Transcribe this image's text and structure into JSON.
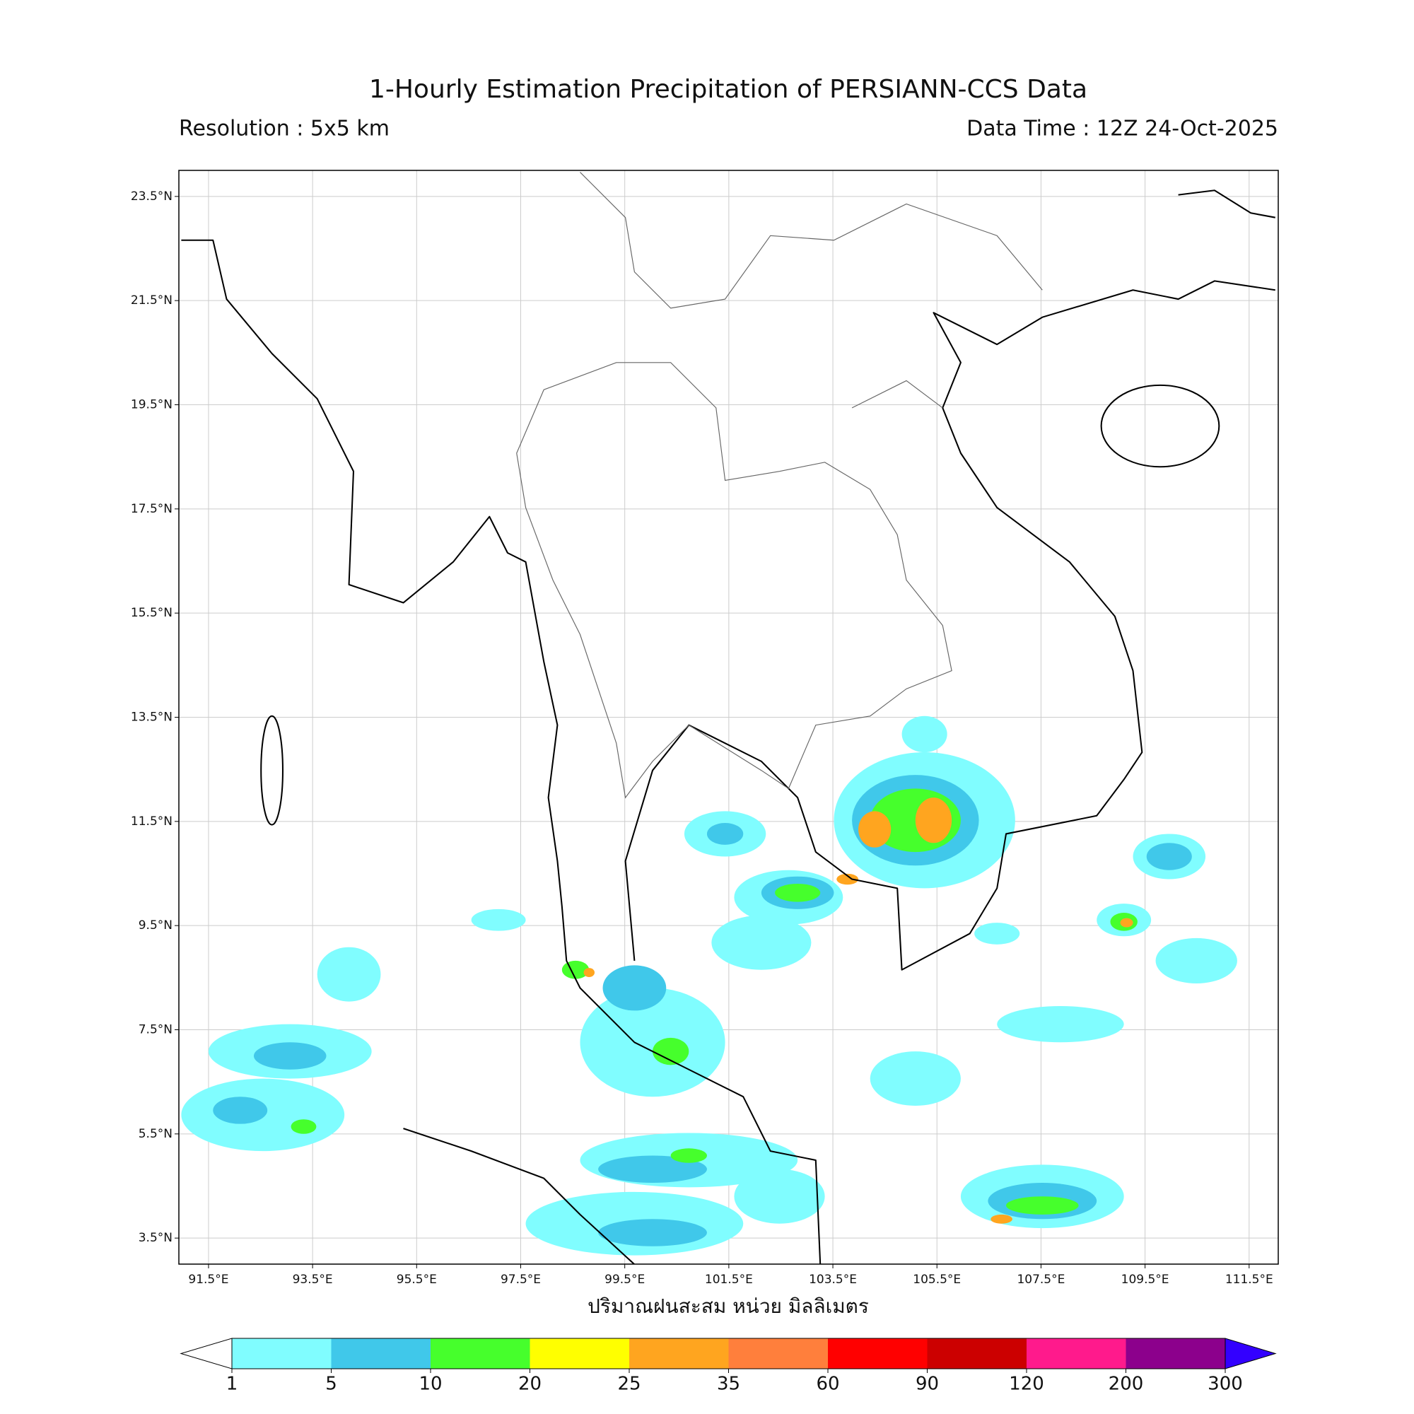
{
  "map": {
    "title": "1-Hourly Estimation Precipitation of PERSIANN-CCS Data",
    "resolution": "Resolution : 5x5 km",
    "data_time": "Data Time : 12Z 24-Oct-2025",
    "xlabel": "ปริมาณฝนสะสม หน่วย มิลลิเมตร",
    "xlim": [
      90.93,
      112.06
    ],
    "ylim": [
      3.0,
      24.0
    ],
    "xticks": [
      {
        "value": 91.5,
        "label": "91.5°E"
      },
      {
        "value": 93.5,
        "label": "93.5°E"
      },
      {
        "value": 95.5,
        "label": "95.5°E"
      },
      {
        "value": 97.5,
        "label": "97.5°E"
      },
      {
        "value": 99.5,
        "label": "99.5°E"
      },
      {
        "value": 101.5,
        "label": "101.5°E"
      },
      {
        "value": 103.5,
        "label": "103.5°E"
      },
      {
        "value": 105.5,
        "label": "105.5°E"
      },
      {
        "value": 107.5,
        "label": "107.5°E"
      },
      {
        "value": 109.5,
        "label": "109.5°E"
      },
      {
        "value": 111.5,
        "label": "111.5°E"
      }
    ],
    "yticks": [
      {
        "value": 3.5,
        "label": "3.5°N"
      },
      {
        "value": 5.5,
        "label": "5.5°N"
      },
      {
        "value": 7.5,
        "label": "7.5°N"
      },
      {
        "value": 9.5,
        "label": "9.5°N"
      },
      {
        "value": 11.5,
        "label": "11.5°N"
      },
      {
        "value": 13.5,
        "label": "13.5°N"
      },
      {
        "value": 15.5,
        "label": "15.5°N"
      },
      {
        "value": 17.5,
        "label": "17.5°N"
      },
      {
        "value": 19.5,
        "label": "19.5°N"
      },
      {
        "value": 21.5,
        "label": "21.5°N"
      },
      {
        "value": 23.5,
        "label": "23.5°N"
      }
    ],
    "grid": true,
    "colorbar": {
      "levels": [
        1,
        5,
        10,
        20,
        25,
        35,
        60,
        90,
        120,
        200,
        300
      ],
      "colors": [
        "#80fdff",
        "#40c8ea",
        "#46ff2c",
        "#ffff00",
        "#ffa51f",
        "#ff7f3c",
        "#ff0000",
        "#cc0000",
        "#ff1a8c",
        "#8c008c"
      ],
      "under_color": "#ffffff",
      "over_color": "#3300ff"
    }
  }
}
